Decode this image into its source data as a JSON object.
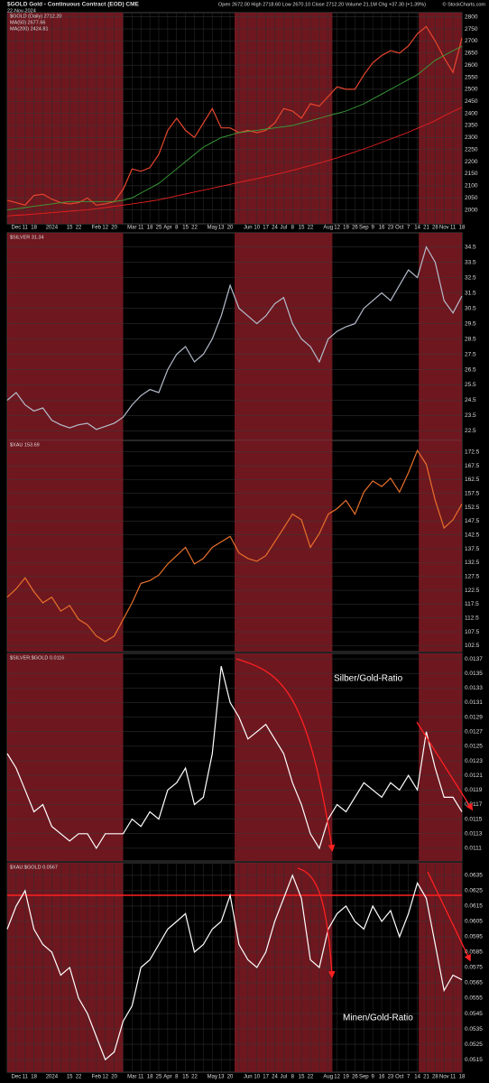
{
  "chart_data": [
    {
      "type": "line",
      "title": "$GOLD Gold - Continuous Contract (EOD) CME",
      "subtitle": "22-Nov-2024",
      "info": "Open 2672.00 High 2718.60 Low 2670.10 Close 2712.20 Volume 21.1M Chg +37.30 (+1.39%)",
      "credit": "© StockCharts.com",
      "categories": [
        null,
        "Dec",
        "11",
        "18",
        null,
        "2024",
        null,
        "15",
        "22",
        null,
        "Feb",
        "12",
        "20",
        null,
        "Mar",
        "11",
        "18",
        "25",
        "Apr",
        "8",
        "15",
        "22",
        null,
        "May",
        "13",
        "20",
        null,
        "Jun",
        "10",
        "17",
        "24",
        "Jul",
        "8",
        "15",
        "22",
        null,
        "Aug",
        "12",
        "19",
        "26",
        "Sep",
        "9",
        "16",
        "23",
        "Oct",
        "7",
        "14",
        "21",
        "28",
        "Nov",
        "11",
        "18"
      ],
      "series": [
        {
          "name": "$GOLD (Daily) 2712.20",
          "color": "#e8452e",
          "values": [
            2040,
            2030,
            2020,
            2060,
            2065,
            2045,
            2030,
            2025,
            2030,
            2050,
            2020,
            2025,
            2035,
            2085,
            2170,
            2160,
            2175,
            2230,
            2330,
            2380,
            2330,
            2300,
            2360,
            2420,
            2340,
            2340,
            2320,
            2330,
            2320,
            2330,
            2360,
            2420,
            2410,
            2380,
            2440,
            2430,
            2470,
            2510,
            2500,
            2500,
            2560,
            2610,
            2640,
            2660,
            2650,
            2680,
            2730,
            2760,
            2700,
            2630,
            2570,
            2712
          ]
        },
        {
          "name": "MA(50) 2677.66",
          "color": "#3aa23a",
          "values": [
            2000,
            2005,
            2010,
            2015,
            2020,
            2025,
            2030,
            2035,
            2035,
            2035,
            2035,
            2035,
            2035,
            2040,
            2050,
            2070,
            2090,
            2110,
            2140,
            2170,
            2200,
            2230,
            2260,
            2280,
            2300,
            2310,
            2320,
            2325,
            2330,
            2335,
            2340,
            2345,
            2350,
            2360,
            2370,
            2380,
            2390,
            2400,
            2410,
            2425,
            2440,
            2460,
            2480,
            2500,
            2520,
            2540,
            2560,
            2590,
            2620,
            2640,
            2660,
            2678
          ]
        },
        {
          "name": "MA(200) 2424.81",
          "color": "#e82020",
          "values": [
            1975,
            1978,
            1980,
            1983,
            1986,
            1989,
            1992,
            1995,
            1998,
            2001,
            2005,
            2010,
            2015,
            2020,
            2025,
            2030,
            2036,
            2042,
            2050,
            2058,
            2066,
            2074,
            2082,
            2090,
            2098,
            2106,
            2114,
            2122,
            2130,
            2138,
            2146,
            2155,
            2164,
            2174,
            2184,
            2194,
            2205,
            2216,
            2228,
            2240,
            2253,
            2266,
            2280,
            2294,
            2308,
            2322,
            2338,
            2354,
            2370,
            2390,
            2408,
            2425
          ]
        }
      ],
      "ylim": [
        1950,
        2810
      ],
      "yticks": [
        2000,
        2050,
        2100,
        2150,
        2200,
        2250,
        2300,
        2350,
        2400,
        2450,
        2500,
        2550,
        2600,
        2650,
        2700,
        2750,
        2800
      ]
    },
    {
      "type": "line",
      "series": [
        {
          "name": "$SILVER 31.34",
          "color": "#b4bccb",
          "values": [
            24.5,
            25.0,
            24.2,
            23.8,
            24.0,
            23.2,
            22.9,
            22.7,
            22.9,
            23.0,
            22.6,
            22.8,
            23.0,
            23.4,
            24.2,
            24.8,
            25.2,
            25.0,
            26.5,
            27.5,
            28.0,
            27.0,
            27.5,
            28.5,
            30.0,
            32.0,
            30.5,
            30.0,
            29.5,
            30.0,
            30.8,
            31.2,
            29.5,
            28.5,
            28.0,
            27.0,
            28.5,
            29.0,
            29.3,
            29.5,
            30.5,
            31.0,
            31.5,
            31.0,
            32.0,
            33.0,
            32.5,
            34.5,
            33.5,
            31.0,
            30.2,
            31.3
          ]
        }
      ],
      "ylim": [
        22,
        35.3
      ],
      "yticks": [
        22.5,
        23.5,
        24.5,
        25.5,
        26.5,
        27.5,
        28.5,
        29.5,
        30.5,
        31.5,
        32.5,
        33.5,
        34.5
      ]
    },
    {
      "type": "line",
      "series": [
        {
          "name": "$XAU 153.69",
          "color": "#e8702a",
          "values": [
            120,
            123,
            127,
            122,
            118,
            120,
            115,
            117,
            112,
            110,
            106,
            104,
            106,
            112,
            118,
            125,
            126,
            128,
            132,
            135,
            138,
            132,
            134,
            138,
            140,
            142,
            136,
            134,
            133,
            135,
            140,
            145,
            150,
            148,
            138,
            143,
            150,
            152,
            155,
            150,
            158,
            162,
            160,
            163,
            158,
            165,
            173,
            168,
            155,
            145,
            148,
            153.7
          ]
        }
      ],
      "ylim": [
        101,
        176
      ],
      "yticks": [
        102.5,
        107.5,
        112.5,
        117.5,
        122.5,
        127.5,
        132.5,
        137.5,
        142.5,
        147.5,
        152.5,
        157.5,
        162.5,
        167.5,
        172.5
      ]
    },
    {
      "type": "line",
      "annotation": "Silber/Gold-Ratio",
      "series": [
        {
          "name": "$SILVER:$GOLD 0.0116",
          "color": "#ffffff",
          "values": [
            0.0124,
            0.0122,
            0.0119,
            0.0116,
            0.0117,
            0.0114,
            0.0113,
            0.0112,
            0.0113,
            0.0113,
            0.0111,
            0.0113,
            0.0113,
            0.0113,
            0.0115,
            0.0114,
            0.0116,
            0.0115,
            0.0119,
            0.012,
            0.0122,
            0.0117,
            0.0118,
            0.0124,
            0.0136,
            0.0131,
            0.0129,
            0.0126,
            0.0127,
            0.0128,
            0.0126,
            0.0124,
            0.012,
            0.0117,
            0.0113,
            0.0111,
            0.0115,
            0.0117,
            0.0116,
            0.0118,
            0.012,
            0.0119,
            0.0118,
            0.012,
            0.0119,
            0.0121,
            0.0119,
            0.0127,
            0.0122,
            0.0118,
            0.0118,
            0.0116
          ]
        }
      ],
      "ylim": [
        0.01095,
        0.01375
      ],
      "yticks": [
        0.0111,
        0.0113,
        0.0115,
        0.0117,
        0.0119,
        0.0121,
        0.0123,
        0.0125,
        0.0127,
        0.0129,
        0.0131,
        0.0133,
        0.0135,
        0.0137
      ]
    },
    {
      "type": "line",
      "annotation": "Minen/Gold-Ratio",
      "hline": 0.0622,
      "categories": [
        null,
        "Dec",
        "11",
        "18",
        null,
        "2024",
        null,
        "15",
        "22",
        null,
        "Feb",
        "12",
        "20",
        null,
        "Mar",
        "11",
        "18",
        "25",
        "Apr",
        "8",
        "15",
        "22",
        null,
        "May",
        "13",
        "20",
        null,
        "Jun",
        "10",
        "17",
        "24",
        "Jul",
        "8",
        "15",
        "22",
        null,
        "Aug",
        "12",
        "19",
        "26",
        "Sep",
        "9",
        "16",
        "23",
        "Oct",
        "7",
        "14",
        "21",
        "28",
        "Nov",
        "11",
        "18"
      ],
      "series": [
        {
          "name": "$XAU:$GOLD 0.0567",
          "color": "#ffffff",
          "values": [
            0.06,
            0.0615,
            0.0625,
            0.06,
            0.059,
            0.0585,
            0.057,
            0.0575,
            0.0555,
            0.0545,
            0.053,
            0.0515,
            0.052,
            0.054,
            0.055,
            0.0575,
            0.058,
            0.059,
            0.06,
            0.0605,
            0.061,
            0.0585,
            0.059,
            0.06,
            0.0605,
            0.0622,
            0.059,
            0.058,
            0.0575,
            0.0585,
            0.0605,
            0.062,
            0.0635,
            0.062,
            0.058,
            0.0575,
            0.06,
            0.061,
            0.0615,
            0.0605,
            0.06,
            0.0615,
            0.0605,
            0.0612,
            0.0595,
            0.061,
            0.063,
            0.062,
            0.059,
            0.056,
            0.057,
            0.0567
          ]
        }
      ],
      "ylim": [
        0.0508,
        0.0642
      ],
      "yticks": [
        0.0515,
        0.0525,
        0.0535,
        0.0545,
        0.0555,
        0.0565,
        0.0575,
        0.0585,
        0.0595,
        0.0605,
        0.0615,
        0.0625,
        0.0635
      ]
    }
  ]
}
